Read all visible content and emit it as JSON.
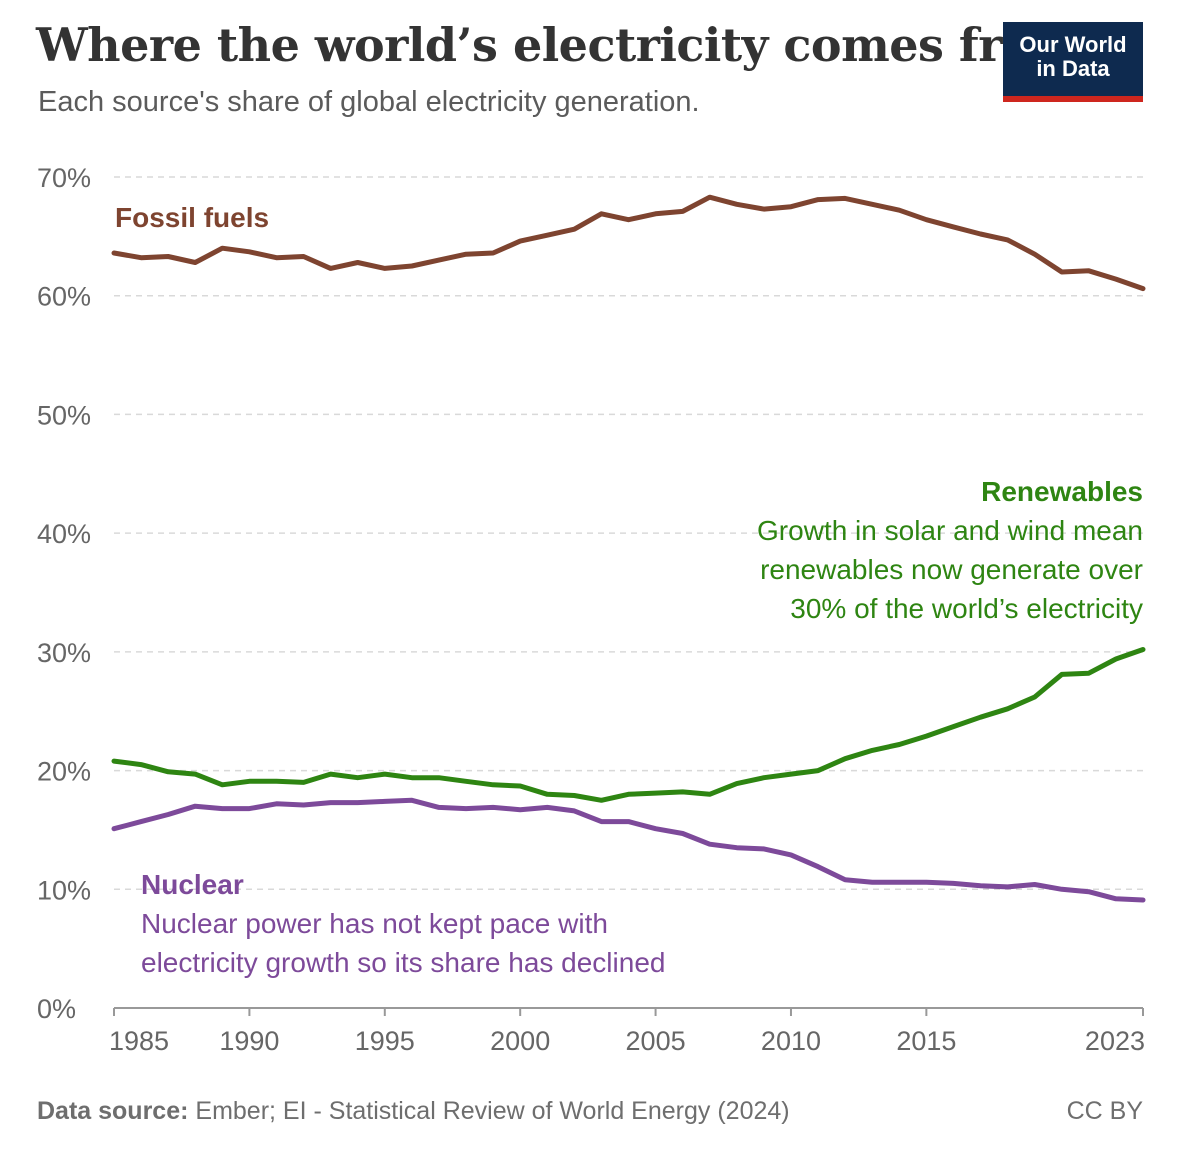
{
  "header": {
    "title": "Where the world’s electricity comes from",
    "subtitle": "Each source's share of global electricity generation.",
    "logo_line1": "Our World",
    "logo_line2": "in Data"
  },
  "footer": {
    "source_label": "Data source:",
    "source_text": "Ember; EI - Statistical Review of World Energy (2024)",
    "license": "CC BY"
  },
  "colors": {
    "fossil": "#7e4430",
    "renewables": "#2e8512",
    "nuclear": "#7d4a9a",
    "grid": "#d9d9d9",
    "axis_text": "#666666"
  },
  "chart_data": {
    "type": "line",
    "title": "Where the world’s electricity comes from",
    "subtitle": "Each source's share of global electricity generation.",
    "xlabel": "",
    "ylabel": "",
    "ylim": [
      0,
      70
    ],
    "xlim": [
      1985,
      2023
    ],
    "yticks": [
      "0%",
      "10%",
      "20%",
      "30%",
      "40%",
      "50%",
      "60%",
      "70%"
    ],
    "xticks": [
      "1985",
      "1990",
      "1995",
      "2000",
      "2005",
      "2010",
      "2015",
      "2023"
    ],
    "x": [
      1985,
      1986,
      1987,
      1988,
      1989,
      1990,
      1991,
      1992,
      1993,
      1994,
      1995,
      1996,
      1997,
      1998,
      1999,
      2000,
      2001,
      2002,
      2003,
      2004,
      2005,
      2006,
      2007,
      2008,
      2009,
      2010,
      2011,
      2012,
      2013,
      2014,
      2015,
      2016,
      2017,
      2018,
      2019,
      2020,
      2021,
      2022,
      2023
    ],
    "series": [
      {
        "key": "fossil",
        "name": "Fossil fuels",
        "values": [
          63.6,
          63.2,
          63.3,
          62.8,
          64.0,
          63.7,
          63.2,
          63.3,
          62.3,
          62.8,
          62.3,
          62.5,
          63.0,
          63.5,
          63.6,
          64.6,
          65.1,
          65.6,
          66.9,
          66.4,
          66.9,
          67.1,
          68.3,
          67.7,
          67.3,
          67.5,
          68.1,
          68.2,
          67.7,
          67.2,
          66.4,
          65.8,
          65.2,
          64.7,
          63.5,
          62.0,
          62.1,
          61.4,
          60.6
        ],
        "annotation_title": "Fossil fuels",
        "annotation_lines": []
      },
      {
        "key": "renewables",
        "name": "Renewables",
        "values": [
          20.8,
          20.5,
          19.9,
          19.7,
          18.8,
          19.1,
          19.1,
          19.0,
          19.7,
          19.4,
          19.7,
          19.4,
          19.4,
          19.1,
          18.8,
          18.7,
          18.0,
          17.9,
          17.5,
          18.0,
          18.1,
          18.2,
          18.0,
          18.9,
          19.4,
          19.7,
          20.0,
          21.0,
          21.7,
          22.2,
          22.9,
          23.7,
          24.5,
          25.2,
          26.2,
          28.1,
          28.2,
          29.4,
          30.2
        ],
        "annotation_title": "Renewables",
        "annotation_lines": [
          "Growth in solar and wind mean",
          "renewables now generate over",
          "30% of the world’s electricity"
        ]
      },
      {
        "key": "nuclear",
        "name": "Nuclear",
        "values": [
          15.1,
          15.7,
          16.3,
          17.0,
          16.8,
          16.8,
          17.2,
          17.1,
          17.3,
          17.3,
          17.4,
          17.5,
          16.9,
          16.8,
          16.9,
          16.7,
          16.9,
          16.6,
          15.7,
          15.7,
          15.1,
          14.7,
          13.8,
          13.5,
          13.4,
          12.9,
          11.9,
          10.8,
          10.6,
          10.6,
          10.6,
          10.5,
          10.3,
          10.2,
          10.4,
          10.0,
          9.8,
          9.2,
          9.1
        ],
        "annotation_title": "Nuclear",
        "annotation_lines": [
          "Nuclear power has not kept pace with",
          "electricity growth so its share has declined"
        ]
      }
    ]
  }
}
